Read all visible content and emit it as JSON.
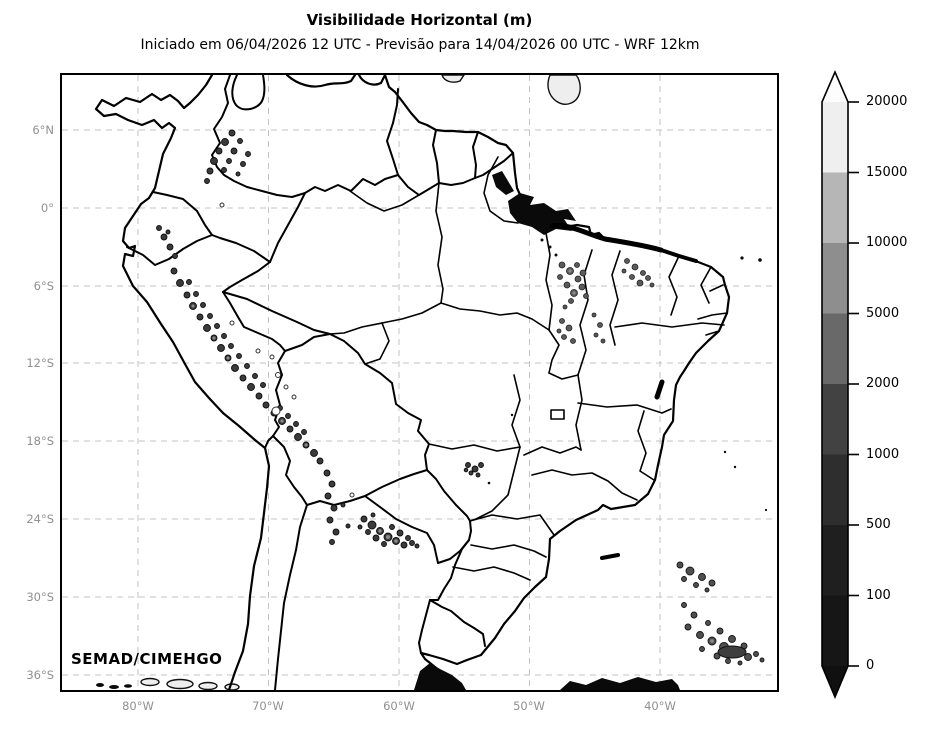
{
  "title": "Visibilidade Horizontal (m)",
  "subtitle": "Iniciado em 06/04/2026 12 UTC - Previsão para 14/04/2026 00 UTC - WRF 12km",
  "credit": "SEMAD/CIMEHGO",
  "axes": {
    "lat_ticks": [
      "6°N",
      "0°",
      "6°S",
      "12°S",
      "18°S",
      "24°S",
      "30°S",
      "36°S"
    ],
    "lon_ticks": [
      "80°W",
      "70°W",
      "60°W",
      "50°W",
      "40°W"
    ]
  },
  "colorbar": {
    "tick_labels": [
      "20000",
      "15000",
      "10000",
      "5000",
      "2000",
      "1000",
      "500",
      "100",
      "0"
    ],
    "levels": [
      20000,
      15000,
      10000,
      5000,
      2000,
      1000,
      500,
      100,
      0
    ],
    "segment_colors_top_to_bottom": [
      "#efefef",
      "#b6b6b6",
      "#8e8e8e",
      "#696969",
      "#424242",
      "#2e2e2e",
      "#1f1f1f",
      "#161616"
    ],
    "extend_over_color": "#fdfdfd",
    "extend_under_color": "#101010",
    "outline_color": "#000000"
  },
  "map": {
    "background": "#ffffff",
    "border_color": "#000000",
    "gridline_color": "#c3c3c3"
  }
}
